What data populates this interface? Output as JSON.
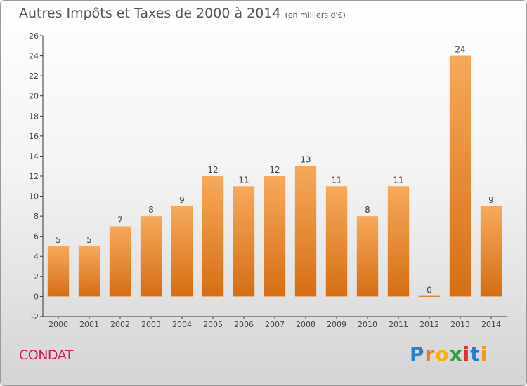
{
  "title": "Autres Impôts et Taxes de 2000 à 2014",
  "unit": "(en milliers d'€)",
  "commune": "CONDAT",
  "brand": {
    "letters": [
      "P",
      "r",
      "o",
      "x",
      "i",
      "t",
      "i"
    ],
    "colors": [
      "#2a7fd0",
      "#e8762b",
      "#f4b400",
      "#2e9e3f",
      "#d9362b",
      "#1d7fd0",
      "#e89b2b"
    ]
  },
  "chart_data": {
    "type": "bar",
    "categories": [
      "2000",
      "2001",
      "2002",
      "2003",
      "2004",
      "2005",
      "2006",
      "2007",
      "2008",
      "2009",
      "2010",
      "2011",
      "2012",
      "2013",
      "2014"
    ],
    "values": [
      5,
      5,
      7,
      8,
      9,
      12,
      11,
      12,
      13,
      11,
      8,
      11,
      0,
      24,
      9
    ],
    "ylim": [
      -2,
      26
    ],
    "yticks": [
      -2,
      0,
      2,
      4,
      6,
      8,
      10,
      12,
      14,
      16,
      18,
      20,
      22,
      24,
      26
    ],
    "grid": false,
    "bar_color": "#e8852f"
  }
}
